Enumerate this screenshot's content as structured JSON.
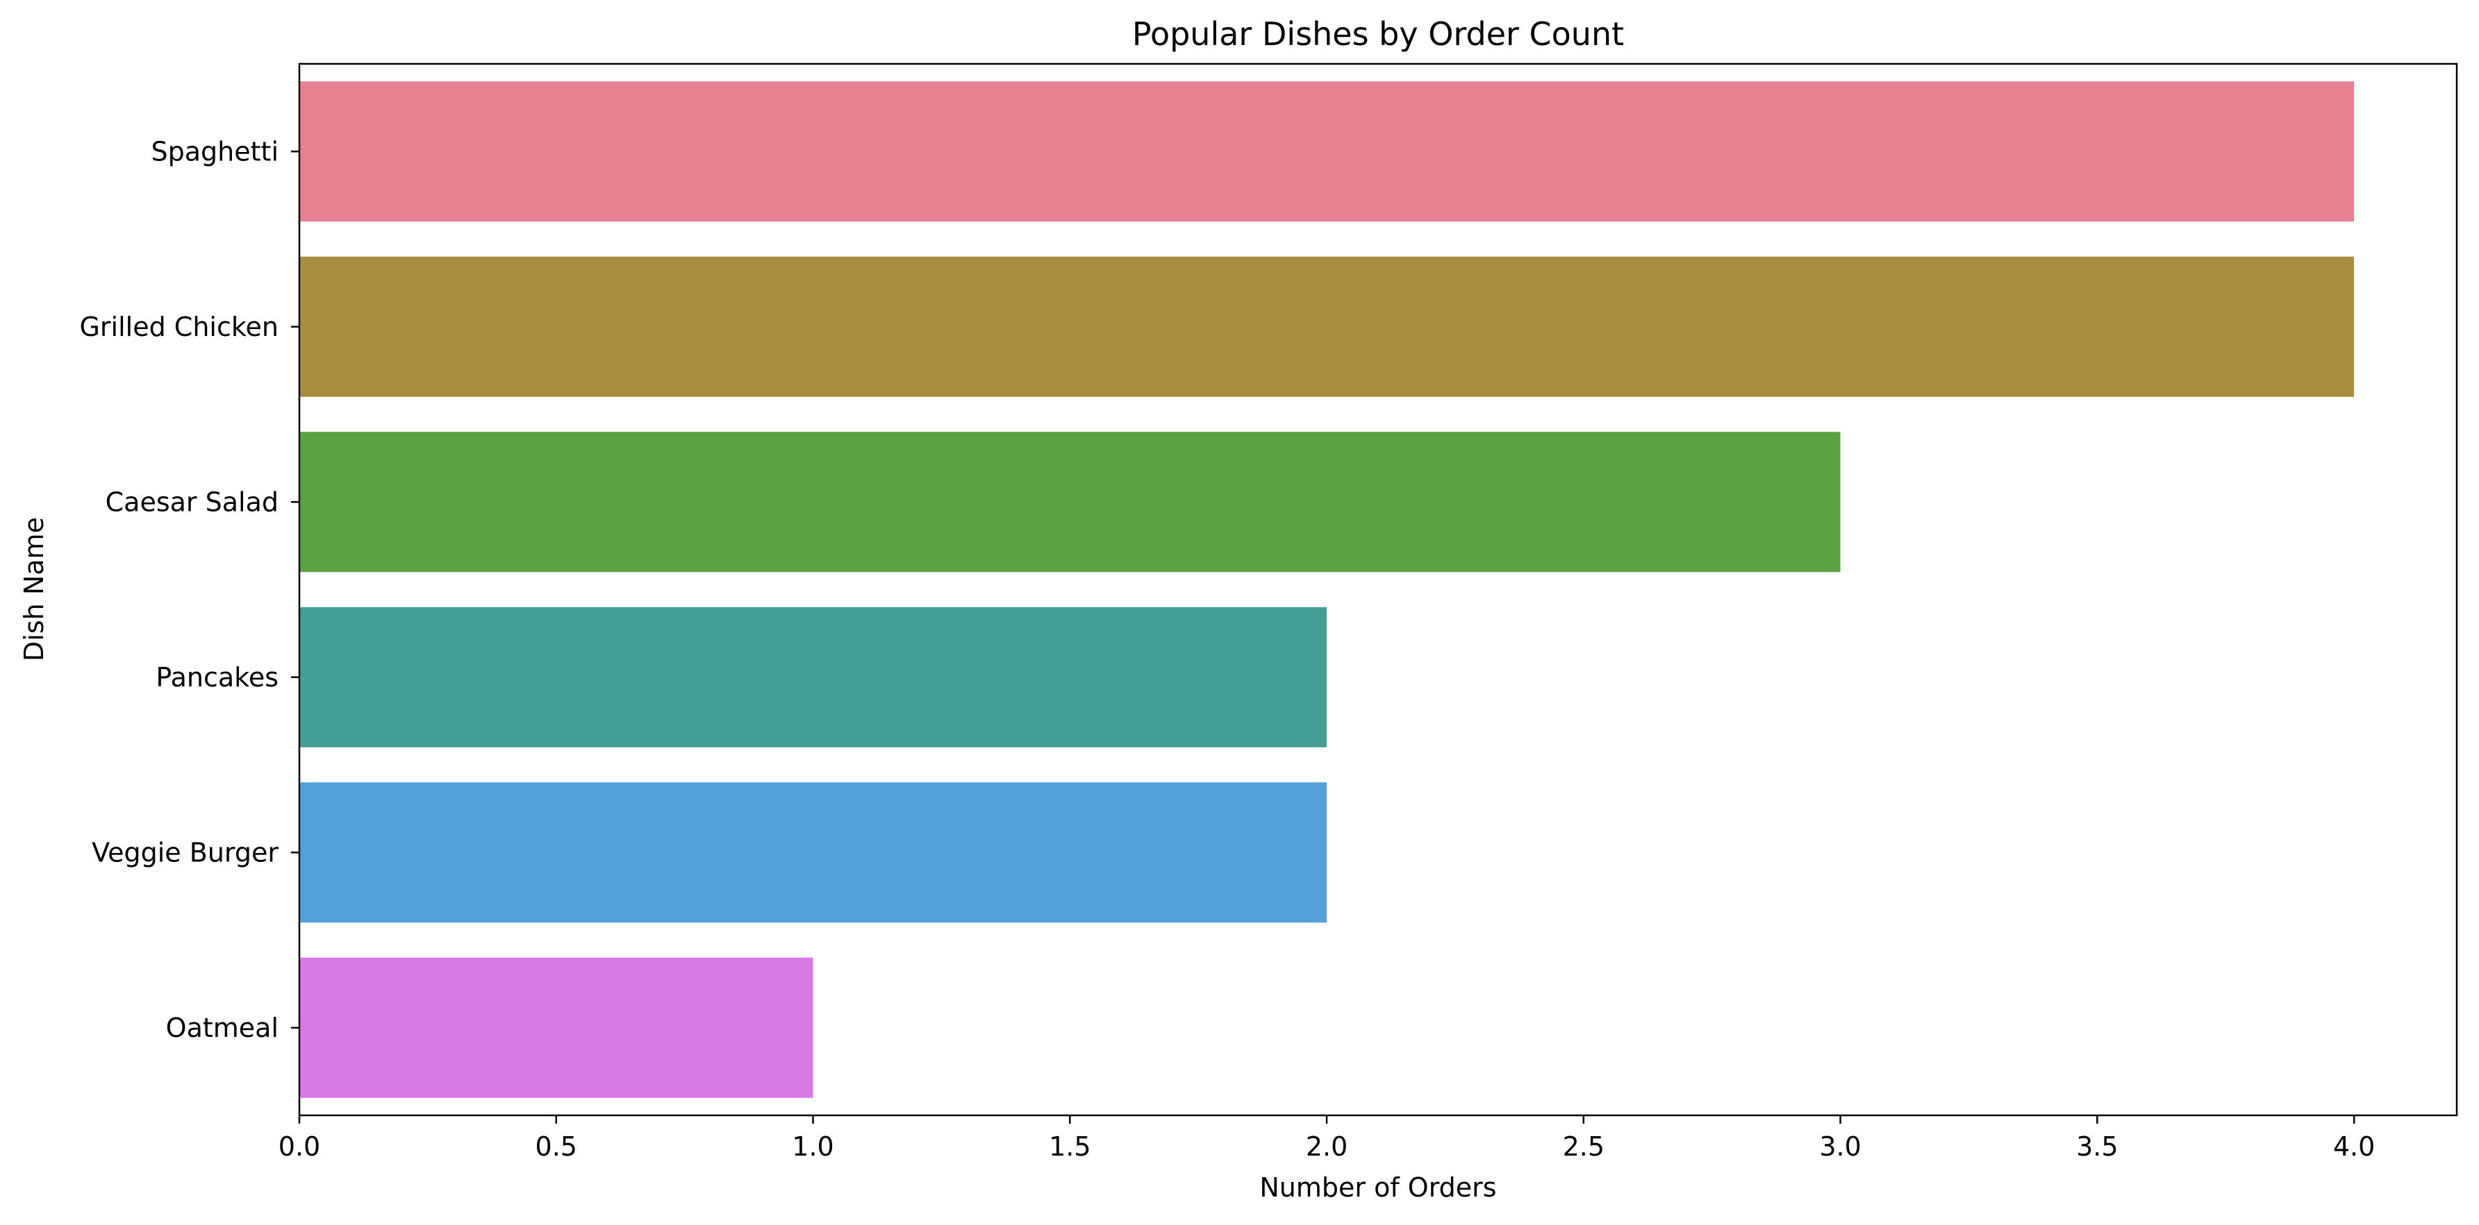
{
  "chart_data": {
    "type": "bar",
    "orientation": "horizontal",
    "title": "Popular Dishes by Order Count",
    "xlabel": "Number of Orders",
    "ylabel": "Dish Name",
    "categories": [
      "Spaghetti",
      "Grilled Chicken",
      "Caesar Salad",
      "Pancakes",
      "Veggie Burger",
      "Oatmeal"
    ],
    "values": [
      4,
      4,
      3,
      2,
      2,
      1
    ],
    "colors": [
      "#e88093",
      "#a98e42",
      "#5aa242",
      "#459e96",
      "#54a0d7",
      "#d878e5"
    ],
    "xlim": [
      0,
      4.2
    ],
    "xticks": [
      0.0,
      0.5,
      1.0,
      1.5,
      2.0,
      2.5,
      3.0,
      3.5,
      4.0
    ],
    "xtick_labels": [
      "0.0",
      "0.5",
      "1.0",
      "1.5",
      "2.0",
      "2.5",
      "3.0",
      "3.5",
      "4.0"
    ],
    "grid": false,
    "legend": "none"
  }
}
